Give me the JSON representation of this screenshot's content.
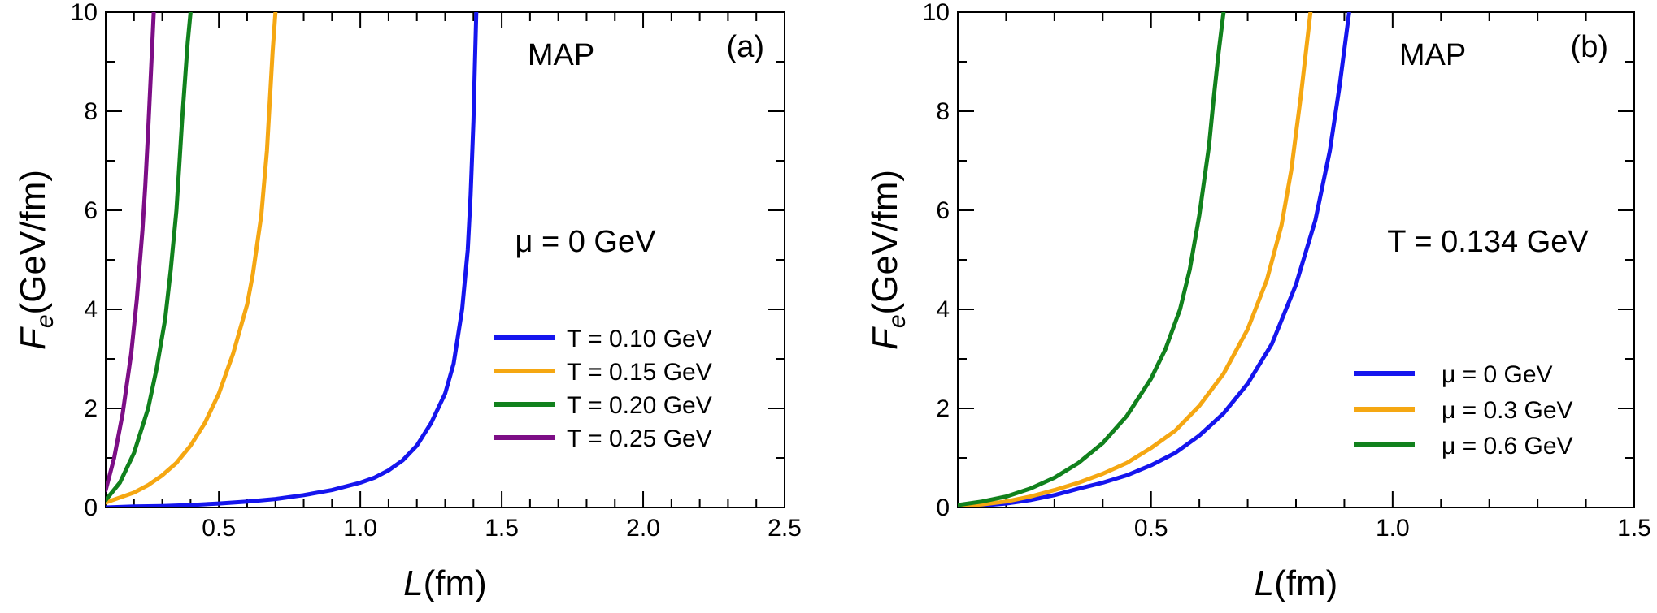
{
  "chart_data": [
    {
      "type": "line",
      "panel_label": "(a)",
      "model_label": "MAP",
      "condition_label": "μ = 0 GeV",
      "xlabel": "L(fm)",
      "xlabel_italic": "L",
      "xlabel_unit": "(fm)",
      "ylabel_main": "F",
      "ylabel_sub": "e",
      "ylabel_unit": "(GeV/fm)",
      "xlim": [
        0.1,
        2.5
      ],
      "ylim": [
        0,
        10
      ],
      "xticks": [
        0.5,
        1.0,
        1.5,
        2.0,
        2.5
      ],
      "xtick_labels": [
        "0.5",
        "1.0",
        "1.5",
        "2.0",
        "2.5"
      ],
      "yticks": [
        0,
        2,
        4,
        6,
        8,
        10
      ],
      "ytick_labels": [
        "0",
        "2",
        "4",
        "6",
        "8",
        "10"
      ],
      "legend_location": "lower-right",
      "series": [
        {
          "name": "T = 0.10 GeV",
          "color": "#1515ee",
          "x": [
            0.1,
            0.2,
            0.3,
            0.4,
            0.5,
            0.6,
            0.7,
            0.8,
            0.9,
            1.0,
            1.05,
            1.1,
            1.15,
            1.2,
            1.25,
            1.3,
            1.33,
            1.36,
            1.38,
            1.39,
            1.4,
            1.405,
            1.41
          ],
          "y": [
            0.0,
            0.02,
            0.03,
            0.05,
            0.08,
            0.12,
            0.17,
            0.25,
            0.35,
            0.5,
            0.6,
            0.75,
            0.95,
            1.25,
            1.7,
            2.3,
            2.9,
            4.0,
            5.2,
            6.3,
            7.8,
            8.9,
            10.0
          ]
        },
        {
          "name": "T = 0.15 GeV",
          "color": "#f5a712",
          "x": [
            0.1,
            0.15,
            0.2,
            0.25,
            0.3,
            0.35,
            0.4,
            0.45,
            0.5,
            0.55,
            0.6,
            0.62,
            0.65,
            0.67,
            0.68,
            0.69,
            0.7
          ],
          "y": [
            0.1,
            0.2,
            0.3,
            0.45,
            0.65,
            0.9,
            1.25,
            1.7,
            2.3,
            3.1,
            4.1,
            4.7,
            5.9,
            7.2,
            8.2,
            9.2,
            10.0
          ]
        },
        {
          "name": "T = 0.20 GeV",
          "color": "#11811d",
          "x": [
            0.1,
            0.15,
            0.2,
            0.25,
            0.28,
            0.31,
            0.33,
            0.35,
            0.36,
            0.37,
            0.38,
            0.39,
            0.4
          ],
          "y": [
            0.15,
            0.5,
            1.1,
            2.0,
            2.8,
            3.8,
            4.8,
            6.0,
            6.9,
            7.8,
            8.6,
            9.4,
            10.0
          ]
        },
        {
          "name": "T = 0.25 GeV",
          "color": "#7d0e86",
          "x": [
            0.1,
            0.13,
            0.16,
            0.19,
            0.21,
            0.23,
            0.24,
            0.25,
            0.26,
            0.27
          ],
          "y": [
            0.35,
            1.0,
            1.9,
            3.1,
            4.2,
            5.6,
            6.5,
            7.6,
            8.8,
            10.0
          ]
        }
      ]
    },
    {
      "type": "line",
      "panel_label": "(b)",
      "model_label": "MAP",
      "condition_label": "T = 0.134 GeV",
      "xlabel": "L(fm)",
      "xlabel_italic": "L",
      "xlabel_unit": "(fm)",
      "ylabel_main": "F",
      "ylabel_sub": "e",
      "ylabel_unit": "(GeV/fm)",
      "xlim": [
        0.1,
        1.5
      ],
      "ylim": [
        0,
        10
      ],
      "xticks": [
        0.5,
        1.0,
        1.5
      ],
      "xtick_labels": [
        "0.5",
        "1.0",
        "1.5"
      ],
      "yticks": [
        0,
        2,
        4,
        6,
        8,
        10
      ],
      "ytick_labels": [
        "0",
        "2",
        "4",
        "6",
        "8",
        "10"
      ],
      "legend_location": "lower-right",
      "series": [
        {
          "name": "μ = 0 GeV",
          "color": "#1515ee",
          "x": [
            0.1,
            0.15,
            0.2,
            0.25,
            0.3,
            0.35,
            0.4,
            0.45,
            0.5,
            0.55,
            0.6,
            0.65,
            0.7,
            0.75,
            0.8,
            0.84,
            0.87,
            0.89,
            0.91
          ],
          "y": [
            0.02,
            0.04,
            0.08,
            0.15,
            0.25,
            0.38,
            0.5,
            0.65,
            0.85,
            1.1,
            1.45,
            1.9,
            2.5,
            3.3,
            4.5,
            5.8,
            7.2,
            8.5,
            10.0
          ]
        },
        {
          "name": "μ = 0.3 GeV",
          "color": "#f5a712",
          "x": [
            0.1,
            0.15,
            0.2,
            0.25,
            0.3,
            0.35,
            0.4,
            0.45,
            0.5,
            0.55,
            0.6,
            0.65,
            0.7,
            0.74,
            0.77,
            0.79,
            0.81,
            0.83
          ],
          "y": [
            0.03,
            0.06,
            0.12,
            0.22,
            0.35,
            0.5,
            0.68,
            0.9,
            1.2,
            1.55,
            2.05,
            2.7,
            3.6,
            4.6,
            5.7,
            6.8,
            8.3,
            10.0
          ]
        },
        {
          "name": "μ = 0.6 GeV",
          "color": "#11811d",
          "x": [
            0.1,
            0.15,
            0.2,
            0.25,
            0.3,
            0.35,
            0.4,
            0.45,
            0.5,
            0.53,
            0.56,
            0.58,
            0.6,
            0.62,
            0.63,
            0.64,
            0.65
          ],
          "y": [
            0.05,
            0.12,
            0.22,
            0.38,
            0.6,
            0.9,
            1.3,
            1.85,
            2.6,
            3.2,
            4.0,
            4.8,
            5.9,
            7.3,
            8.3,
            9.2,
            10.0
          ]
        }
      ]
    }
  ]
}
